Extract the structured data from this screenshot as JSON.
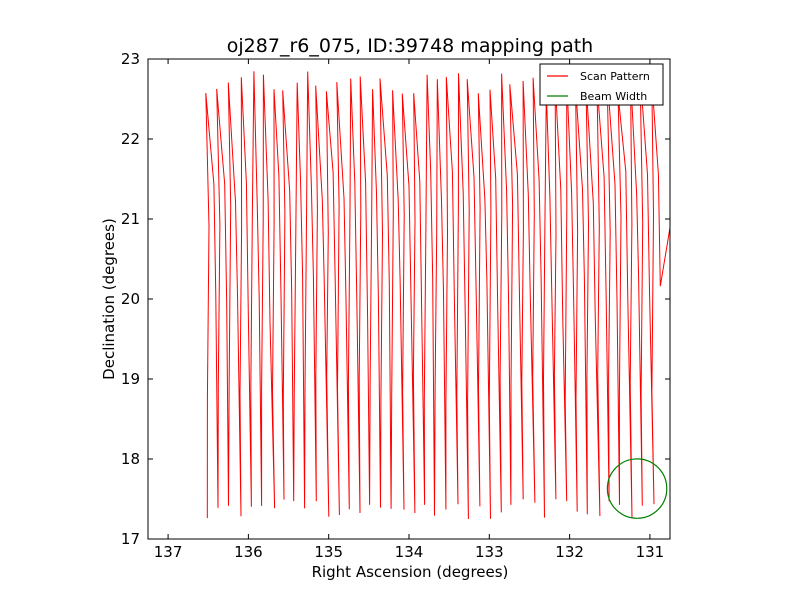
{
  "chart_data": {
    "type": "line",
    "title": "oj287_r6_075, ID:39748 mapping path",
    "xlabel": "Right Ascension (degrees)",
    "ylabel": "Declination (degrees)",
    "xlim": [
      137.25,
      130.75
    ],
    "ylim": [
      17,
      23
    ],
    "x_inverted": true,
    "xticks": [
      137,
      136,
      135,
      134,
      133,
      132,
      131
    ],
    "yticks": [
      17,
      18,
      19,
      20,
      21,
      22,
      23
    ],
    "grid": false,
    "legend_position": "top-right",
    "series": [
      {
        "name": "Scan Pattern",
        "color": "#ff0000",
        "pattern": "raster scan: vertical strips between Dec 17.5 and 22.7",
        "ra_start": 136.5,
        "ra_end": 130.9,
        "strip_spacing_deg": 0.135,
        "dec_low": 17.5,
        "dec_high": 22.7
      },
      {
        "name": "Beam Width",
        "color": "#008000",
        "center_ra": 131.16,
        "center_dec": 17.63,
        "radius_deg": 0.37
      }
    ]
  }
}
